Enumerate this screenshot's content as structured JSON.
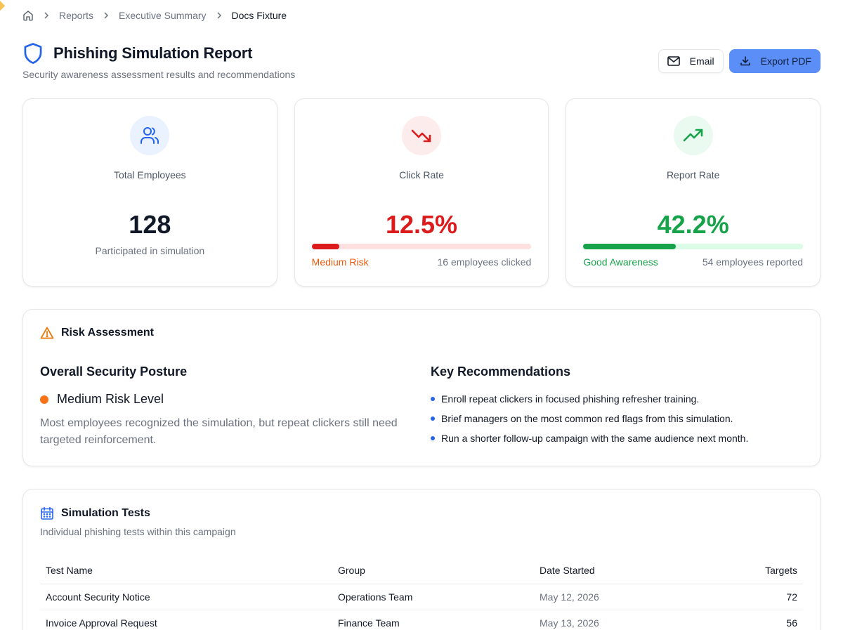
{
  "breadcrumb": {
    "items": [
      "Reports",
      "Executive Summary",
      "Docs Fixture"
    ]
  },
  "header": {
    "title": "Phishing Simulation Report",
    "subtitle": "Security awareness assessment results and recommendations",
    "email_label": "Email",
    "export_label": "Export PDF"
  },
  "stats": {
    "employees": {
      "label": "Total Employees",
      "value": "128",
      "note": "Participated in simulation",
      "icon": "users-icon"
    },
    "click_rate": {
      "label": "Click Rate",
      "value": "12.5%",
      "level": 0.125,
      "status": "Medium Risk",
      "count_text": "16 employees clicked",
      "icon": "trending-down-icon",
      "color": "#dc1c1c",
      "status_color": "#ea580c",
      "track_color": "#fde0e0"
    },
    "report_rate": {
      "label": "Report Rate",
      "value": "42.2%",
      "level": 0.422,
      "status": "Good Awareness",
      "count_text": "54 employees reported",
      "icon": "trending-up-icon",
      "color": "#16a34a",
      "status_color": "#16a34a",
      "track_color": "#dcfce7"
    }
  },
  "risk": {
    "title": "Risk Assessment",
    "posture_heading": "Overall Security Posture",
    "level": "Medium Risk Level",
    "description": "Most employees recognized the simulation, but repeat clickers still need targeted reinforcement.",
    "recommendations_heading": "Key Recommendations",
    "recommendations": [
      "Enroll repeat clickers in focused phishing refresher training.",
      "Brief managers on the most common red flags from this simulation.",
      "Run a shorter follow-up campaign with the same audience next month."
    ]
  },
  "tests": {
    "title": "Simulation Tests",
    "subtitle": "Individual phishing tests within this campaign",
    "columns": [
      "Test Name",
      "Group",
      "Date Started",
      "Targets"
    ],
    "rows": [
      [
        "Account Security Notice",
        "Operations Team",
        "May 12, 2026",
        "72"
      ],
      [
        "Invoice Approval Request",
        "Finance Team",
        "May 13, 2026",
        "56"
      ]
    ]
  },
  "colors": {
    "accent": "#5b8ef7",
    "primary_blue": "#2563eb",
    "risk_orange": "#f97316"
  }
}
